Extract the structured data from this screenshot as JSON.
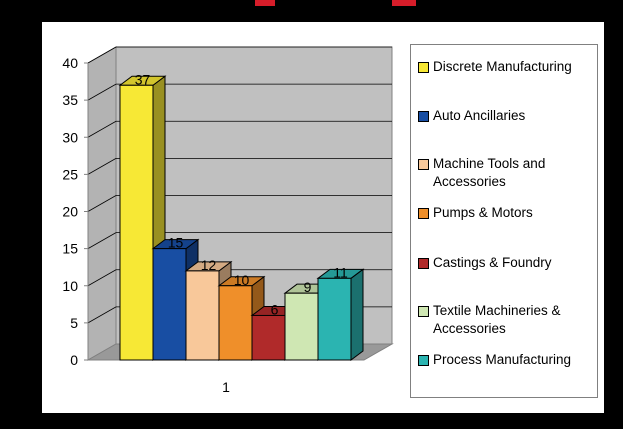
{
  "chart_data": {
    "type": "bar",
    "style": "3d-clustered-column",
    "categories": [
      "1"
    ],
    "series": [
      {
        "name": "Discrete Manufacturing",
        "values": [
          37
        ],
        "color": "#f7e835"
      },
      {
        "name": "Auto Ancillaries",
        "values": [
          15
        ],
        "color": "#184ea3"
      },
      {
        "name": "Machine Tools and Accessories",
        "values": [
          12
        ],
        "color": "#f8c89a"
      },
      {
        "name": "Pumps & Motors",
        "values": [
          10
        ],
        "color": "#ef8f2a"
      },
      {
        "name": "Castings & Foundry",
        "values": [
          6
        ],
        "color": "#b02a2a"
      },
      {
        "name": "Textile Machineries & Accessories",
        "values": [
          9
        ],
        "color": "#cfe7b3"
      },
      {
        "name": "Process Manufacturing",
        "values": [
          11
        ],
        "color": "#2bb4b1"
      }
    ],
    "ylim": [
      0,
      40
    ],
    "yticks": [
      "0",
      "5",
      "10",
      "15",
      "20",
      "25",
      "30",
      "35",
      "40"
    ],
    "grid": true,
    "legend": "right",
    "wall_color": "#c0c0c0"
  }
}
